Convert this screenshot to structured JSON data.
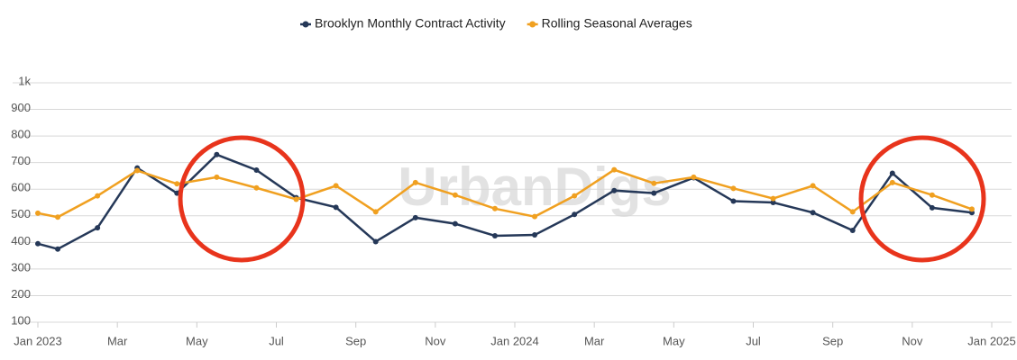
{
  "chart_data": {
    "type": "line",
    "watermark": "UrbanDigs",
    "x": [
      0,
      0.5,
      1.5,
      2.5,
      3.5,
      4.5,
      5.5,
      6.5,
      7.5,
      8.5,
      9.5,
      10.5,
      11.5,
      12.5,
      13.5,
      14.5,
      15.5,
      16.5,
      17.5,
      18.5,
      19.5,
      20.5,
      21.5,
      22.5,
      23.5
    ],
    "series": [
      {
        "name": "Brooklyn Monthly Contract Activity",
        "color": "#253858",
        "values": [
          395,
          375,
          455,
          680,
          585,
          730,
          672,
          568,
          532,
          403,
          493,
          470,
          425,
          428,
          505,
          595,
          585,
          643,
          555,
          550,
          512,
          445,
          660,
          530,
          512
        ]
      },
      {
        "name": "Rolling Seasonal Averages",
        "color": "#f0a020",
        "values": [
          510,
          495,
          575,
          670,
          620,
          645,
          605,
          562,
          613,
          515,
          625,
          578,
          527,
          497,
          575,
          673,
          622,
          645,
          603,
          565,
          613,
          515,
          625,
          578,
          525
        ]
      }
    ],
    "xlim": [
      0,
      24
    ],
    "xticks": [
      {
        "value": 0,
        "label": "Jan 2023"
      },
      {
        "value": 2,
        "label": "Mar"
      },
      {
        "value": 4,
        "label": "May"
      },
      {
        "value": 6,
        "label": "Jul"
      },
      {
        "value": 8,
        "label": "Sep"
      },
      {
        "value": 10,
        "label": "Nov"
      },
      {
        "value": 12,
        "label": "Jan 2024"
      },
      {
        "value": 14,
        "label": "Mar"
      },
      {
        "value": 16,
        "label": "May"
      },
      {
        "value": 18,
        "label": "Jul"
      },
      {
        "value": 20,
        "label": "Sep"
      },
      {
        "value": 22,
        "label": "Nov"
      },
      {
        "value": 24,
        "label": "Jan 2025"
      }
    ],
    "ylim": [
      100,
      1000
    ],
    "yticks": [
      100,
      200,
      300,
      400,
      500,
      600,
      700,
      800,
      900,
      {
        "value": 1000,
        "label": "1k"
      }
    ],
    "grid": true,
    "legend": "top"
  }
}
